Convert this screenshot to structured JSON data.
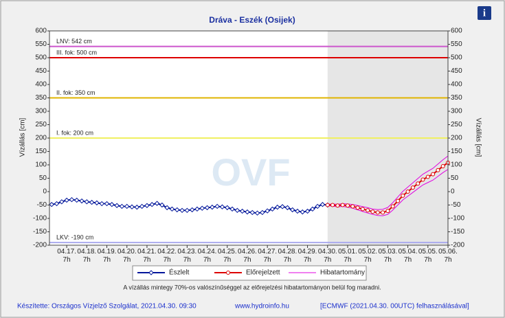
{
  "chart_data": {
    "type": "line",
    "title": "Dráva - Eszék (Osijek)",
    "info_icon": "i",
    "watermark": "OVF",
    "ylabel": "Vízállás [cm]",
    "y2label": "Vízállás [cm]",
    "xlim": [
      -0.86,
      19
    ],
    "ylim": [
      -200,
      600
    ],
    "yticks": [
      -200,
      -150,
      -100,
      -50,
      0,
      50,
      100,
      150,
      200,
      250,
      300,
      350,
      400,
      450,
      500,
      550,
      600
    ],
    "xticks": [
      {
        "value": 0,
        "label": "04.17. 7h"
      },
      {
        "value": 1,
        "label": "04.18. 7h"
      },
      {
        "value": 2,
        "label": "04.19. 7h"
      },
      {
        "value": 3,
        "label": "04.20. 7h"
      },
      {
        "value": 4,
        "label": "04.21. 7h"
      },
      {
        "value": 5,
        "label": "04.22. 7h"
      },
      {
        "value": 6,
        "label": "04.23. 7h"
      },
      {
        "value": 7,
        "label": "04.24. 7h"
      },
      {
        "value": 8,
        "label": "04.25. 7h"
      },
      {
        "value": 9,
        "label": "04.26. 7h"
      },
      {
        "value": 10,
        "label": "04.27. 7h"
      },
      {
        "value": 11,
        "label": "04.28. 7h"
      },
      {
        "value": 12,
        "label": "04.29. 7h"
      },
      {
        "value": 13,
        "label": "04.30. 7h"
      },
      {
        "value": 14,
        "label": "05.01. 7h"
      },
      {
        "value": 15,
        "label": "05.02. 7h"
      },
      {
        "value": 16,
        "label": "05.03. 7h"
      },
      {
        "value": 17,
        "label": "05.04. 7h"
      },
      {
        "value": 18,
        "label": "05.05. 7h"
      },
      {
        "value": 19,
        "label": "05.06. 7h"
      }
    ],
    "forecast_start": 13,
    "grid": false,
    "reference_lines": [
      {
        "label": "LNV: 542 cm",
        "value": 542,
        "color": "#cc55cc"
      },
      {
        "label": "III. fok: 500 cm",
        "value": 500,
        "color": "#dd0000"
      },
      {
        "label": "II. fok: 350 cm",
        "value": 350,
        "color": "#e0b400"
      },
      {
        "label": "I. fok: 200 cm",
        "value": 200,
        "color": "#f0f060"
      },
      {
        "label": "LKV: -190 cm",
        "value": -190,
        "color": "#aaaaee"
      }
    ],
    "series": [
      {
        "name": "Észlelt",
        "color": "#00159a",
        "marker": "diamond",
        "x": [
          -0.75,
          -0.5,
          -0.25,
          0,
          0.25,
          0.5,
          0.75,
          1,
          1.25,
          1.5,
          1.75,
          2,
          2.25,
          2.5,
          2.75,
          3,
          3.25,
          3.5,
          3.75,
          4,
          4.25,
          4.5,
          4.75,
          5,
          5.25,
          5.5,
          5.75,
          6,
          6.25,
          6.5,
          6.75,
          7,
          7.25,
          7.5,
          7.75,
          8,
          8.25,
          8.5,
          8.75,
          9,
          9.25,
          9.5,
          9.75,
          10,
          10.25,
          10.5,
          10.75,
          11,
          11.25,
          11.5,
          11.75,
          12,
          12.25,
          12.5,
          12.75,
          13
        ],
        "values": [
          -48,
          -45,
          -38,
          -32,
          -30,
          -32,
          -35,
          -38,
          -40,
          -42,
          -45,
          -45,
          -48,
          -52,
          -55,
          -55,
          -57,
          -58,
          -55,
          -52,
          -48,
          -44,
          -50,
          -60,
          -65,
          -68,
          -70,
          -70,
          -68,
          -65,
          -62,
          -60,
          -58,
          -55,
          -57,
          -60,
          -65,
          -70,
          -73,
          -76,
          -78,
          -80,
          -78,
          -72,
          -65,
          -58,
          -56,
          -60,
          -68,
          -73,
          -76,
          -73,
          -65,
          -55,
          -48,
          -50
        ]
      },
      {
        "name": "Előrejelzett",
        "color": "#dd0000",
        "marker": "circle",
        "x": [
          13,
          13.25,
          13.5,
          13.75,
          14,
          14.25,
          14.5,
          14.75,
          15,
          15.25,
          15.5,
          15.75,
          16,
          16.25,
          16.5,
          16.75,
          17,
          17.25,
          17.5,
          17.75,
          18,
          18.25,
          18.5,
          18.75,
          19
        ],
        "values": [
          -50,
          -50,
          -52,
          -50,
          -52,
          -55,
          -60,
          -65,
          -70,
          -75,
          -78,
          -78,
          -72,
          -55,
          -35,
          -15,
          0,
          15,
          30,
          45,
          55,
          65,
          80,
          95,
          108
        ]
      },
      {
        "name": "Hibatartomány",
        "color": "#e000e0",
        "marker": "none",
        "x": [
          13,
          13.25,
          13.5,
          13.75,
          14,
          14.25,
          14.5,
          14.75,
          15,
          15.25,
          15.5,
          15.75,
          16,
          16.25,
          16.5,
          16.75,
          17,
          17.25,
          17.5,
          17.75,
          18,
          18.25,
          18.5,
          18.75,
          19
        ],
        "values": [
          -47,
          -46,
          -47,
          -45,
          -46,
          -48,
          -52,
          -56,
          -60,
          -65,
          -67,
          -66,
          -59,
          -41,
          -20,
          1,
          17,
          33,
          49,
          65,
          76,
          87,
          103,
          119,
          133
        ],
        "lower": [
          -53,
          -54,
          -57,
          -55,
          -58,
          -62,
          -68,
          -74,
          -80,
          -85,
          -89,
          -90,
          -85,
          -69,
          -50,
          -31,
          -17,
          -3,
          11,
          25,
          34,
          43,
          57,
          71,
          83
        ]
      }
    ],
    "note": "A vízállás mintegy 70%-os valószínűséggel az előrejelzési hibatartományon belül fog maradni.",
    "footer": {
      "author": "Készítette: Országos Vízjelző Szolgálat, 2021.04.30. 09:30",
      "url": "www.hydroinfo.hu",
      "source": "[ECMWF (2021.04.30. 00UTC) felhasználásával]"
    }
  }
}
